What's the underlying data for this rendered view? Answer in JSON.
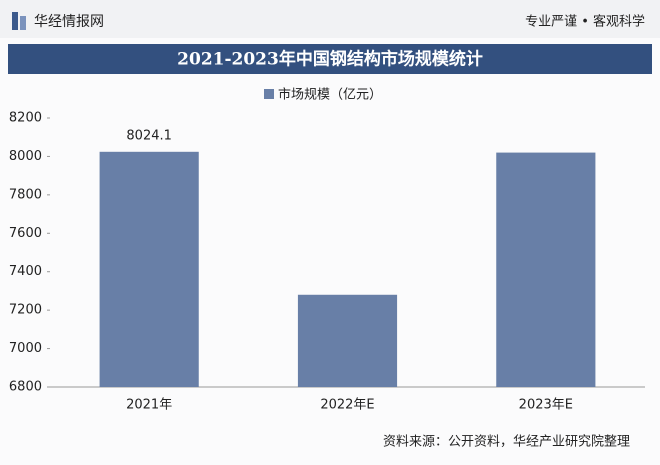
{
  "header": {
    "brand": "华经情报网",
    "slogan": "专业严谨 • 客观科学"
  },
  "chart_data": {
    "type": "bar",
    "title": "2021-2023年中国钢结构市场规模统计",
    "categories": [
      "2021年",
      "2022年E",
      "2023年E"
    ],
    "series": [
      {
        "name": "市场规模（亿元）",
        "color": "#687fa7",
        "values": [
          8024.1,
          7280,
          8020
        ],
        "value_labels": [
          "8024.1",
          null,
          null
        ]
      }
    ],
    "ylim": [
      6800,
      8200
    ],
    "yticks": [
      6800,
      7000,
      7200,
      7400,
      7600,
      7800,
      8000,
      8200
    ],
    "grid": false,
    "legend": "top"
  },
  "footer": {
    "source": "资料来源：公开资料，华经产业研究院整理"
  }
}
